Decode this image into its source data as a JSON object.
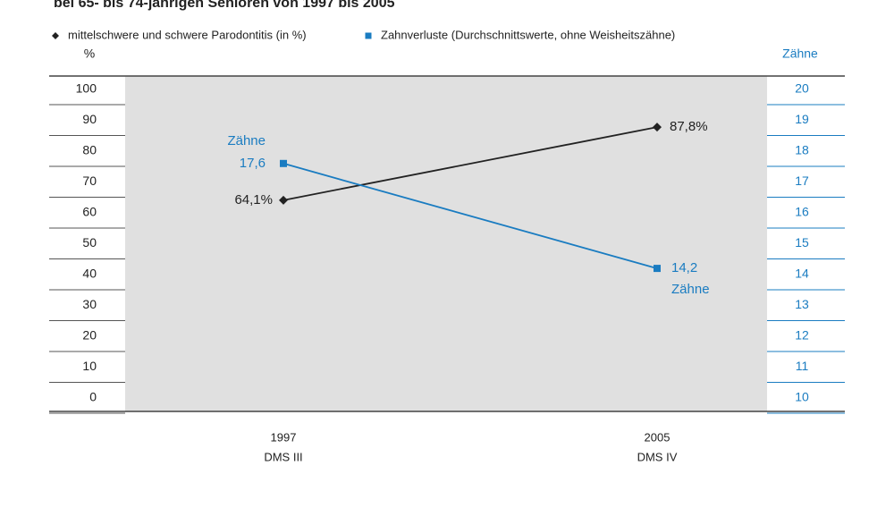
{
  "chart_data": {
    "type": "line",
    "title": "bei 65- bis 74-jährigen Senioren von 1997 bis 2005",
    "ylabel": "%",
    "y2label": "Zähne",
    "categories": [
      [
        "1997",
        "DMS III"
      ],
      [
        "2005",
        "DMS IV"
      ]
    ],
    "series": [
      {
        "name": "mittelschwere und schwere Parodontitis (in %)",
        "color": "#222222",
        "marker": "diamond",
        "values": [
          64.1,
          87.8
        ],
        "value_labels": [
          "64,1%",
          "87,8%"
        ]
      },
      {
        "name": "Zahnverluste (Durchschnittswerte, ohne Weisheitszähne)",
        "color": "#1a7cc1",
        "marker": "square",
        "axis": "y2",
        "values": [
          17.6,
          14.2
        ],
        "value_labels": [
          "17,6",
          "14,2"
        ],
        "value_notes": [
          "Zähne",
          "Zähne"
        ]
      }
    ],
    "ylim": [
      0,
      100
    ],
    "yticks": [
      0,
      10,
      20,
      30,
      40,
      50,
      60,
      70,
      80,
      90,
      100
    ],
    "y2lim": [
      10,
      20
    ],
    "y2ticks": [
      10,
      11,
      12,
      13,
      14,
      15,
      16,
      17,
      18,
      19,
      20
    ]
  }
}
